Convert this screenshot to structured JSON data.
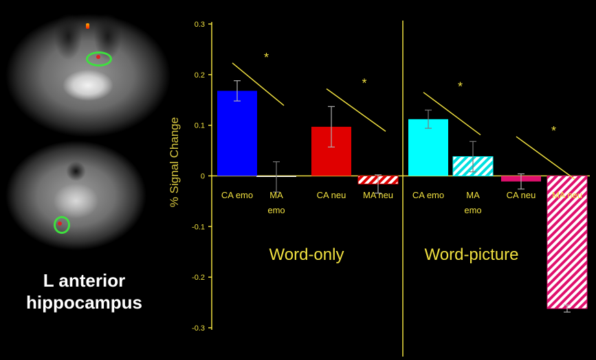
{
  "region_label_line1": "L anterior",
  "region_label_line2": "hippocampus",
  "chart_data": {
    "type": "bar",
    "ylabel": "% Signal Change",
    "ylim": [
      -0.3,
      0.3
    ],
    "yticks": [
      "0.3",
      "0.2",
      "0.1",
      "0",
      "-0.1",
      "-0.2",
      "-0.3"
    ],
    "grid": false,
    "groups": [
      {
        "label": "Word-only",
        "bars": [
          {
            "label": "CA emo",
            "value": 0.168,
            "error": 0.02,
            "color": "#0000ff",
            "pattern": "solid"
          },
          {
            "label": "MA\nemo",
            "value": -0.002,
            "error": 0.03,
            "color": "#ffffff",
            "pattern": "solid"
          },
          {
            "label": "CA neu",
            "value": 0.097,
            "error": 0.04,
            "color": "#e00000",
            "pattern": "solid"
          },
          {
            "label": "MA neu",
            "value": -0.016,
            "error": 0.018,
            "color": "#e00000",
            "pattern": "hatch"
          }
        ],
        "significance": [
          "*",
          "*"
        ]
      },
      {
        "label": "Word-picture",
        "bars": [
          {
            "label": "CA emo",
            "value": 0.112,
            "error": 0.018,
            "color": "#00ffff",
            "pattern": "solid"
          },
          {
            "label": "MA\nemo",
            "value": 0.038,
            "error": 0.03,
            "color": "#00ffff",
            "pattern": "hatch"
          },
          {
            "label": "CA neu",
            "value": -0.011,
            "error": 0.015,
            "color": "#e0106e",
            "pattern": "solid"
          },
          {
            "label": "MA neu",
            "value": -0.262,
            "error": 0.007,
            "color": "#e0106e",
            "pattern": "hatch"
          }
        ],
        "significance": [
          "*",
          "*"
        ]
      }
    ]
  }
}
